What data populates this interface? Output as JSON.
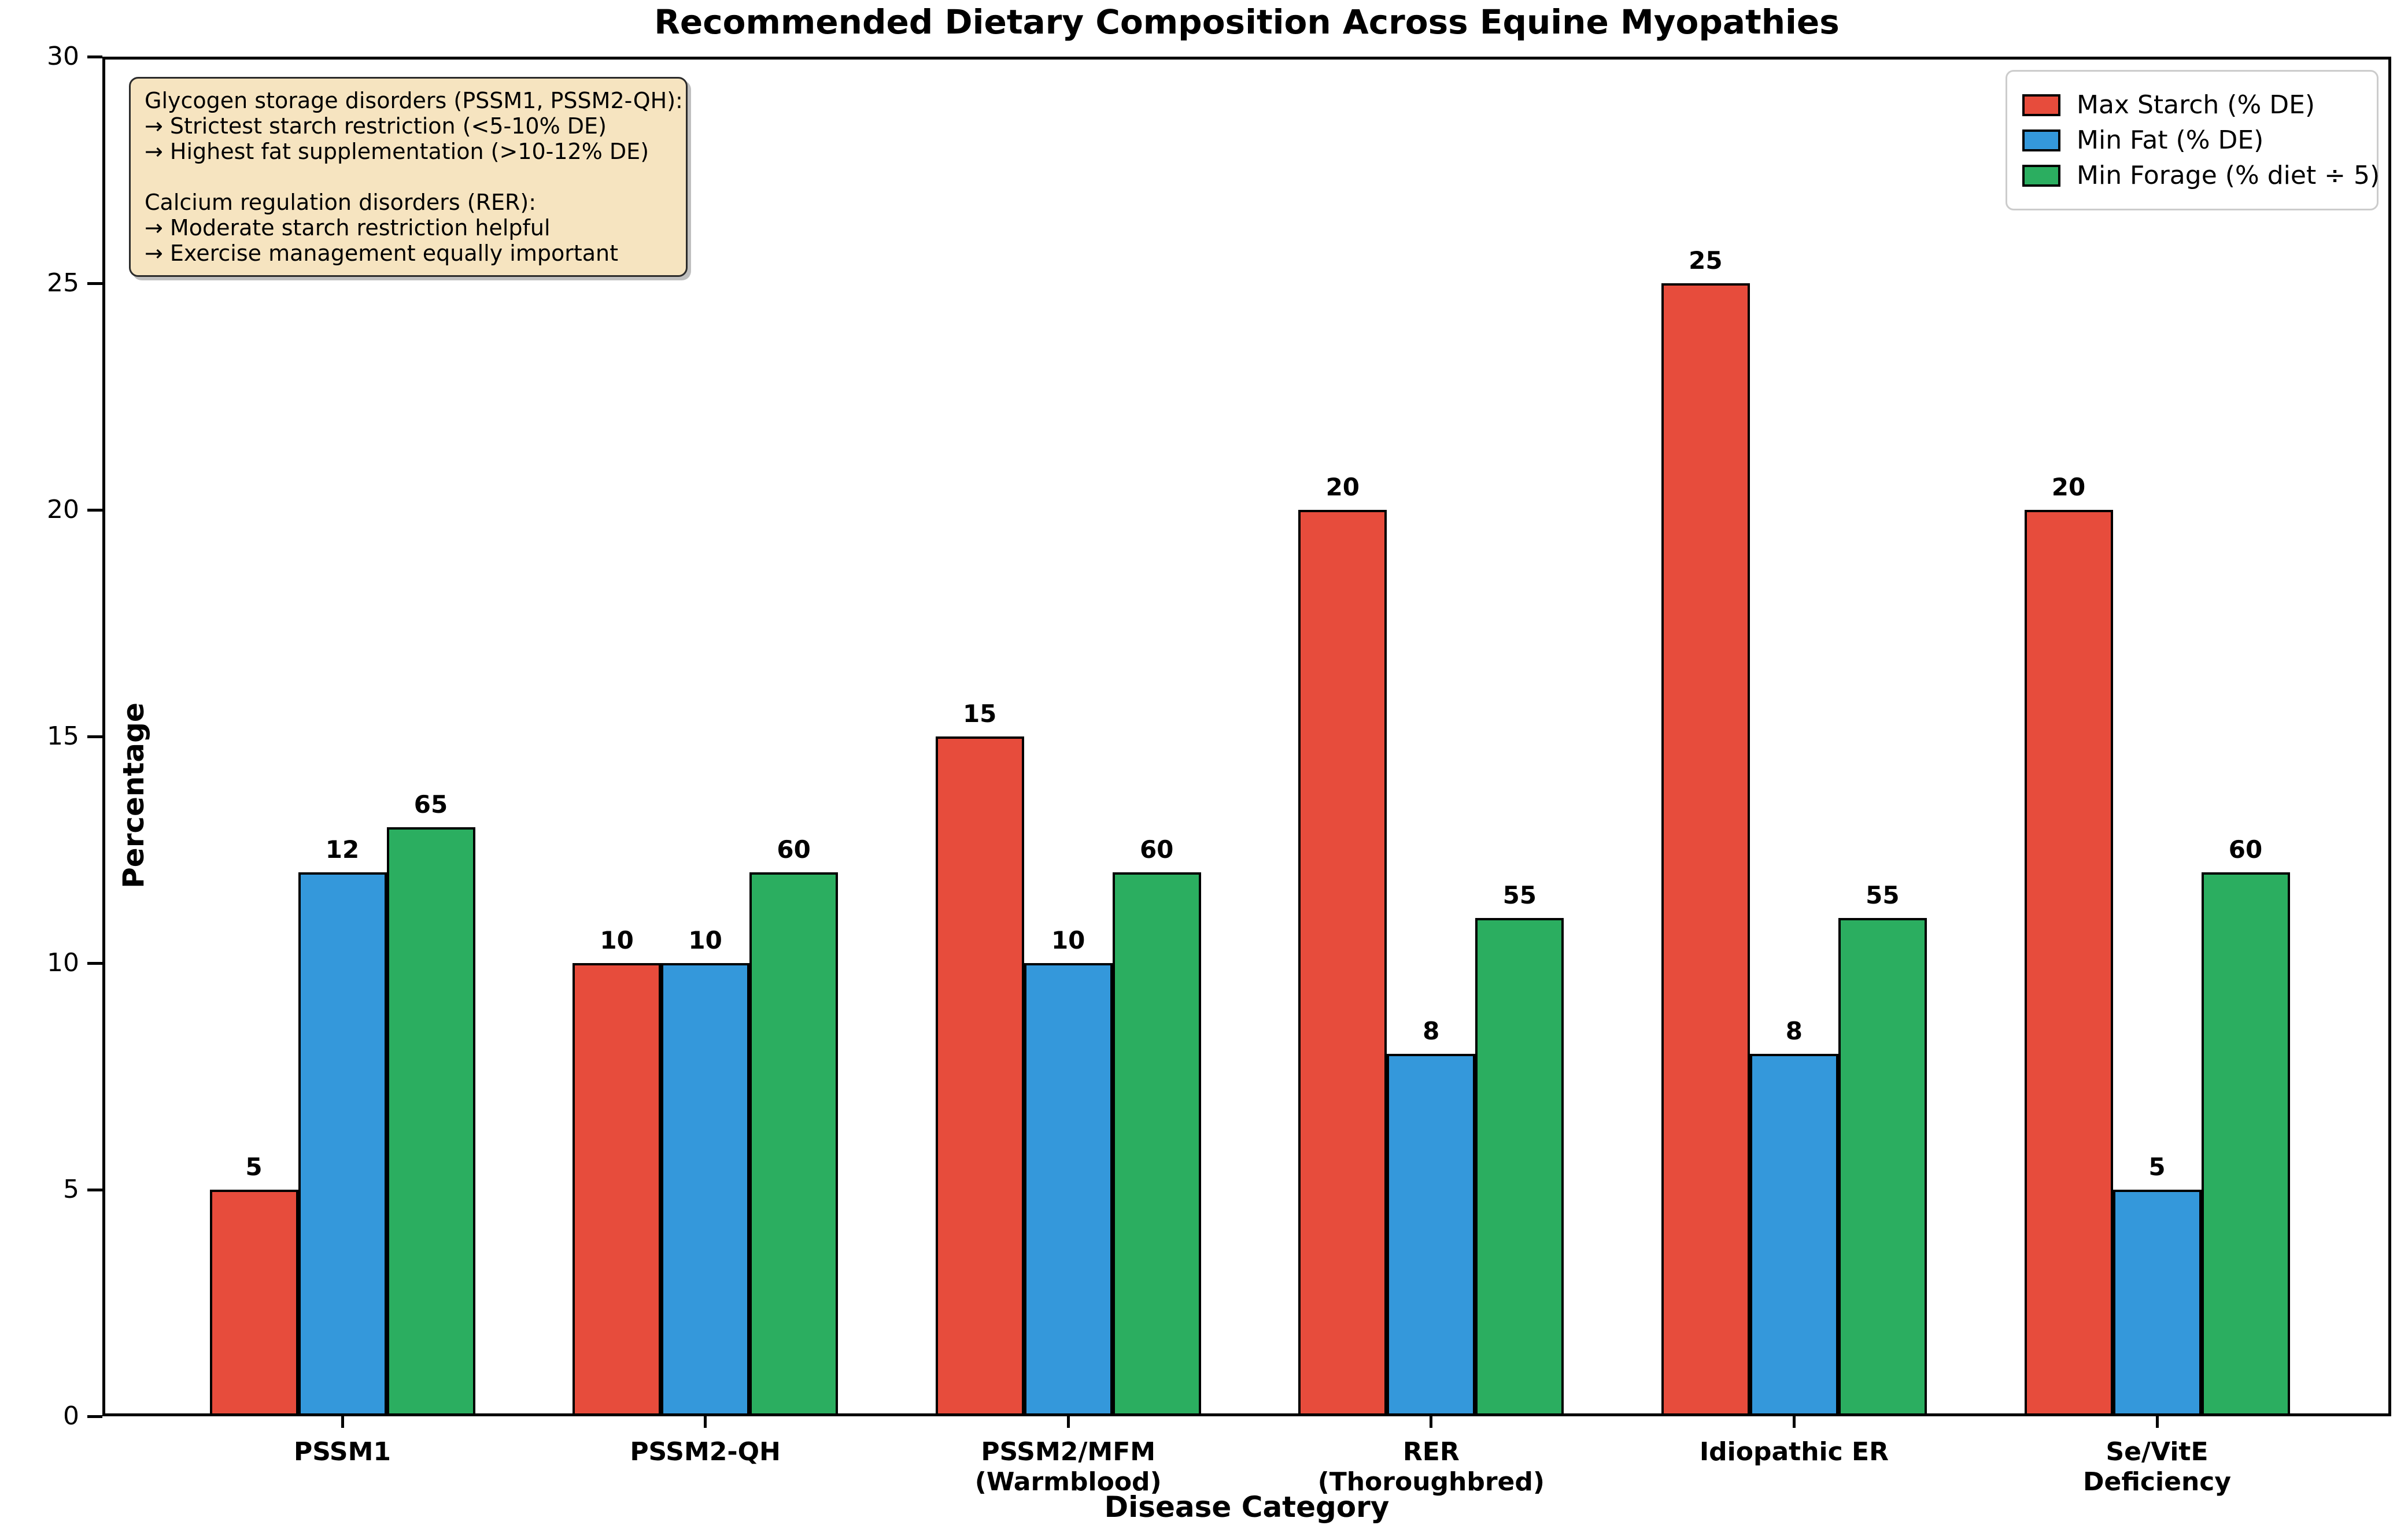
{
  "title": "Recommended Dietary Composition Across Equine Myopathies",
  "axes": {
    "x_label": "Disease Category",
    "y_label": "Percentage",
    "y_ticks": [
      0,
      5,
      10,
      15,
      20,
      25,
      30
    ],
    "y_max": 30
  },
  "legend": {
    "position": "upper right",
    "items": [
      {
        "label": "Max Starch (% DE)",
        "color": "#E74C3C"
      },
      {
        "label": "Min Fat (% DE)",
        "color": "#3498DB"
      },
      {
        "label": "Min Forage (% diet ÷ 5)",
        "color": "#2BAE60"
      }
    ]
  },
  "annotation": {
    "lines": [
      "Glycogen storage disorders (PSSM1, PSSM2-QH):",
      "→ Strictest starch restriction (<5-10% DE)",
      "→ Highest fat supplementation (>10-12% DE)",
      "",
      "Calcium regulation disorders (RER):",
      "→ Moderate starch restriction helpful",
      "→ Exercise management equally important"
    ]
  },
  "chart_data": {
    "type": "bar",
    "title": "Recommended Dietary Composition Across Equine Myopathies",
    "xlabel": "Disease Category",
    "ylabel": "Percentage",
    "ylim": [
      0,
      30
    ],
    "grid": false,
    "legend_position": "upper right",
    "categories": [
      "PSSM1",
      "PSSM2-QH",
      "PSSM2/MFM (Warmblood)",
      "RER (Thoroughbred)",
      "Idiopathic ER",
      "Se/VitE Deficiency"
    ],
    "category_label_lines": [
      [
        "PSSM1"
      ],
      [
        "PSSM2-QH"
      ],
      [
        "PSSM2/MFM",
        "(Warmblood)"
      ],
      [
        "RER",
        "(Thoroughbred)"
      ],
      [
        "Idiopathic ER"
      ],
      [
        "Se/VitE",
        "Deficiency"
      ]
    ],
    "series": [
      {
        "name": "Max Starch (% DE)",
        "color": "#E74C3C",
        "values": [
          5,
          10,
          15,
          20,
          25,
          20
        ],
        "bar_labels": [
          "5",
          "10",
          "15",
          "20",
          "25",
          "20"
        ]
      },
      {
        "name": "Min Fat (% DE)",
        "color": "#3498DB",
        "values": [
          12,
          10,
          10,
          8,
          8,
          5
        ],
        "bar_labels": [
          "12",
          "10",
          "10",
          "8",
          "8",
          "5"
        ]
      },
      {
        "name": "Min Forage (% diet ÷ 5)",
        "color": "#2BAE60",
        "values": [
          13,
          12,
          12,
          11,
          11,
          12
        ],
        "bar_labels": [
          "65",
          "60",
          "60",
          "55",
          "55",
          "60"
        ],
        "note": "bar height plotted as labeled forage percent divided by 5"
      }
    ]
  }
}
